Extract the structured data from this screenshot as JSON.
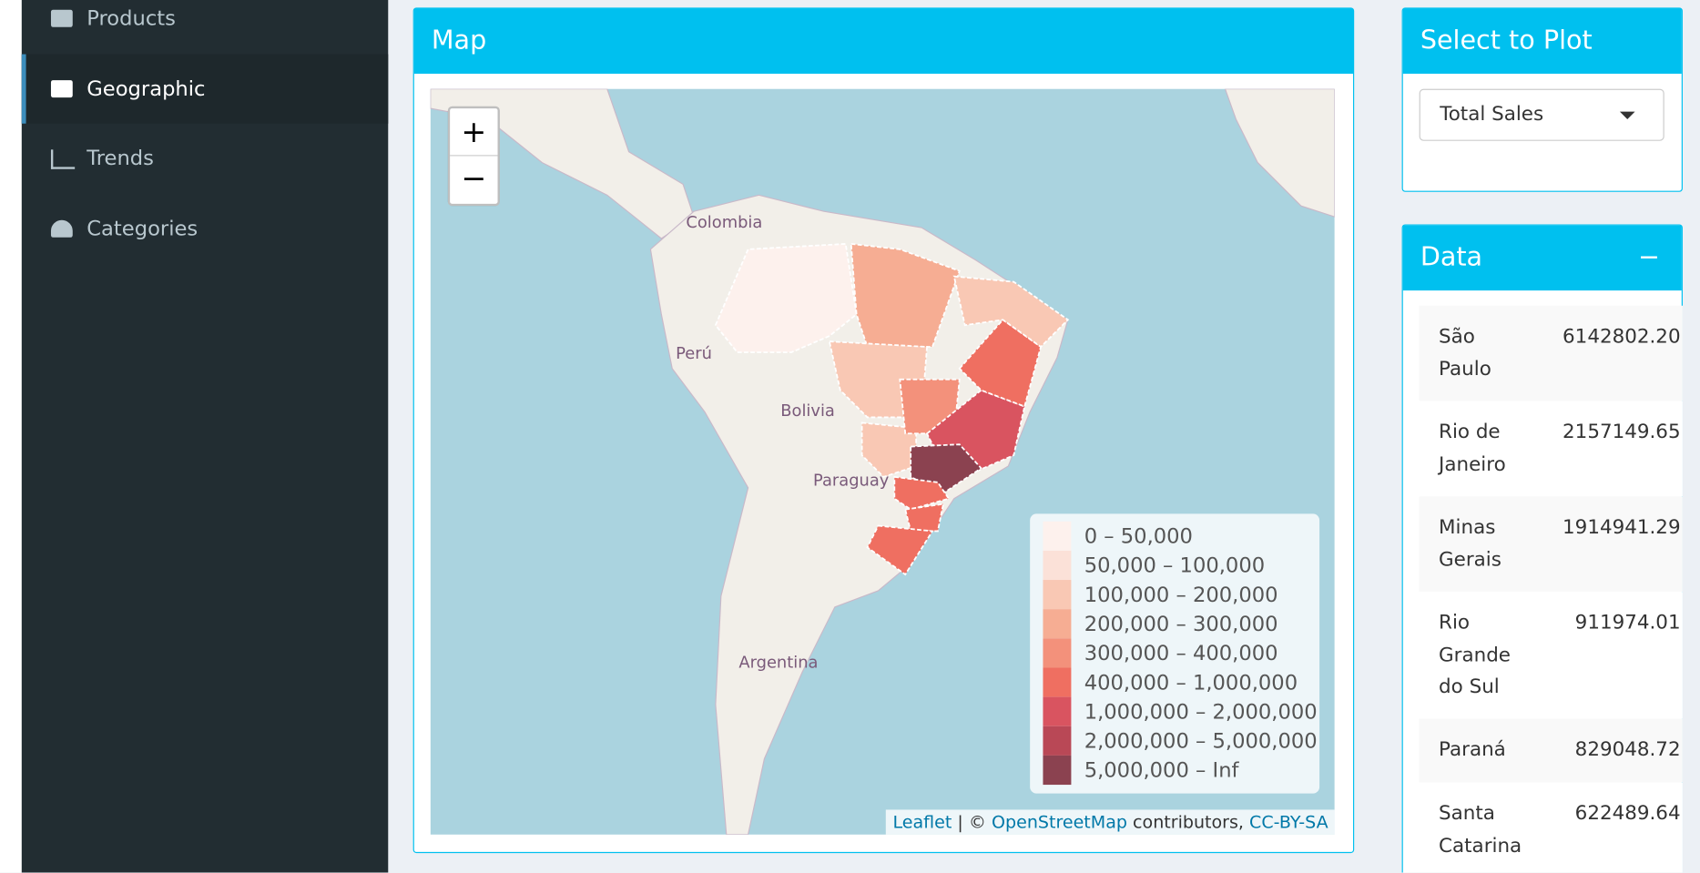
{
  "sidebar": {
    "items": [
      "Products",
      "Geographic",
      "Trends",
      "Categories"
    ]
  },
  "map_box": {
    "title": "Map",
    "map_labels": [
      "Colombia",
      "Perú",
      "Bolivia",
      "Paraguay",
      "Argentina"
    ],
    "legend": [
      {
        "label": "0 – 50,000",
        "color": "#fdf1ed"
      },
      {
        "label": "50,000 – 100,000",
        "color": "#fbe1d8"
      },
      {
        "label": "100,000 – 200,000",
        "color": "#f9c8b4"
      },
      {
        "label": "200,000 – 300,000",
        "color": "#f6ad93"
      },
      {
        "label": "300,000 – 400,000",
        "color": "#f3917b"
      },
      {
        "label": "400,000 – 1,000,000",
        "color": "#ef6f61"
      },
      {
        "label": "1,000,000 – 2,000,000",
        "color": "#d95460"
      },
      {
        "label": "2,000,000 – 5,000,000",
        "color": "#b94856"
      },
      {
        "label": "5,000,000 – Inf",
        "color": "#8b4250"
      }
    ],
    "attribution": {
      "leaflet": "Leaflet",
      "sep": "| ©",
      "osm": "OpenStreetMap",
      "contrib": "contributors,",
      "license": "CC-BY-SA"
    }
  },
  "select_box": {
    "title": "Select to Plot",
    "selected": "Total Sales"
  },
  "data_box": {
    "title": "Data",
    "rows": [
      [
        "São Paulo",
        "6142802.20"
      ],
      [
        "Rio de Janeiro",
        "2157149.65"
      ],
      [
        "Minas Gerais",
        "1914941.29"
      ],
      [
        "Rio Grande do Sul",
        "911974.01"
      ],
      [
        "Paraná",
        "829048.72"
      ],
      [
        "Santa Catarina",
        "622489.64"
      ]
    ]
  }
}
